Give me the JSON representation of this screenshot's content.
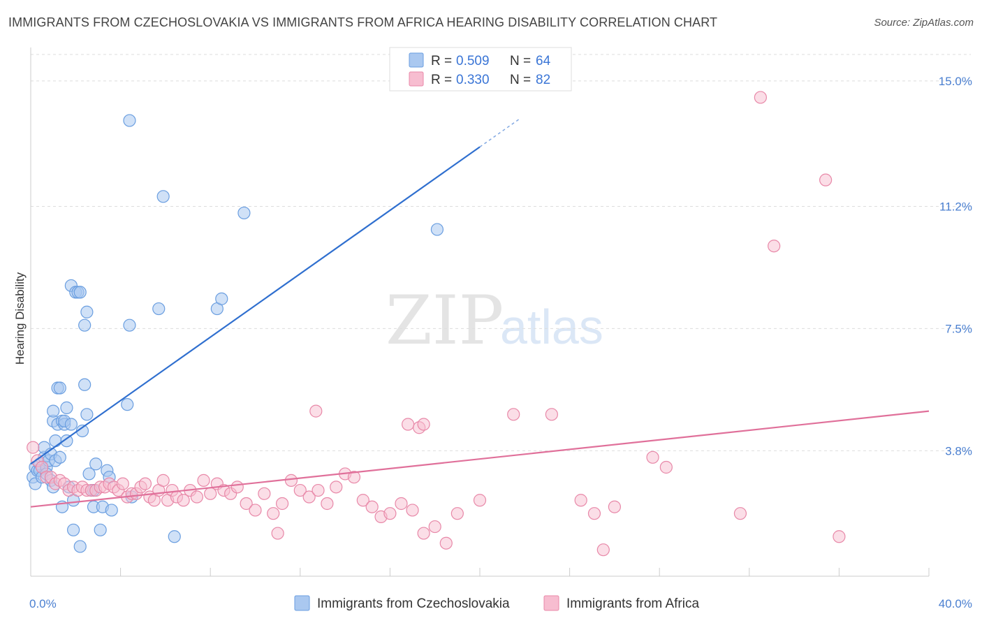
{
  "title": "IMMIGRANTS FROM CZECHOSLOVAKIA VS IMMIGRANTS FROM AFRICA HEARING DISABILITY CORRELATION CHART",
  "source": "Source: ZipAtlas.com",
  "watermark": {
    "zip": "ZIP",
    "atlas": "atlas"
  },
  "legend_top": [
    {
      "r_label": "R = ",
      "r_value": "0.509",
      "n_label": "N = ",
      "n_value": "64"
    },
    {
      "r_label": "R = ",
      "r_value": "0.330",
      "n_label": "N = ",
      "n_value": "82"
    }
  ],
  "colors": {
    "blue_fill": "#aac8f0",
    "blue_stroke": "#6a9ee0",
    "blue_line": "#2f6fcf",
    "pink_fill": "#f7bdd0",
    "pink_stroke": "#e888a8",
    "pink_line": "#e0709a",
    "tick_text": "#4a7fd0",
    "grid": "#dddddd"
  },
  "chart_data": {
    "type": "scatter",
    "title": "IMMIGRANTS FROM CZECHOSLOVAKIA VS IMMIGRANTS FROM AFRICA HEARING DISABILITY CORRELATION CHART",
    "xlabel": "",
    "ylabel": "Hearing Disability",
    "xlim": [
      0,
      40
    ],
    "ylim": [
      0,
      15.8
    ],
    "x_tick_labels": [
      "0.0%",
      "40.0%"
    ],
    "y_ticks": [
      3.8,
      7.5,
      11.2,
      15.0
    ],
    "y_tick_labels": [
      "3.8%",
      "7.5%",
      "11.2%",
      "15.0%"
    ],
    "grid": true,
    "legend_position": "top-center",
    "series": [
      {
        "name": "Immigrants from Czechoslovakia",
        "color": "#6a9ee0",
        "R": 0.509,
        "N": 64,
        "trend": {
          "x": [
            0,
            20
          ],
          "y": [
            3.4,
            13.0
          ]
        },
        "points": [
          [
            0.1,
            3.0
          ],
          [
            0.2,
            2.8
          ],
          [
            0.2,
            3.3
          ],
          [
            0.3,
            3.2
          ],
          [
            0.4,
            3.4
          ],
          [
            0.4,
            3.2
          ],
          [
            0.5,
            3.0
          ],
          [
            0.6,
            3.6
          ],
          [
            0.6,
            3.9
          ],
          [
            0.7,
            3.3
          ],
          [
            0.7,
            3.1
          ],
          [
            0.8,
            3.5
          ],
          [
            0.9,
            2.9
          ],
          [
            0.9,
            3.7
          ],
          [
            1.0,
            4.7
          ],
          [
            1.0,
            5.0
          ],
          [
            1.0,
            2.7
          ],
          [
            1.1,
            3.5
          ],
          [
            1.1,
            4.1
          ],
          [
            1.2,
            4.6
          ],
          [
            1.2,
            5.7
          ],
          [
            1.3,
            3.6
          ],
          [
            1.3,
            5.7
          ],
          [
            1.4,
            2.1
          ],
          [
            1.4,
            4.7
          ],
          [
            1.5,
            4.6
          ],
          [
            1.5,
            4.7
          ],
          [
            1.6,
            4.1
          ],
          [
            1.6,
            5.1
          ],
          [
            1.7,
            2.7
          ],
          [
            1.8,
            4.6
          ],
          [
            1.8,
            8.8
          ],
          [
            1.9,
            2.3
          ],
          [
            1.9,
            1.4
          ],
          [
            2.0,
            8.6
          ],
          [
            2.1,
            8.6
          ],
          [
            2.2,
            8.6
          ],
          [
            2.2,
            0.9
          ],
          [
            2.3,
            4.4
          ],
          [
            2.4,
            5.8
          ],
          [
            2.4,
            7.6
          ],
          [
            2.5,
            4.9
          ],
          [
            2.5,
            8.0
          ],
          [
            2.6,
            3.1
          ],
          [
            2.7,
            2.6
          ],
          [
            2.8,
            2.1
          ],
          [
            2.8,
            2.6
          ],
          [
            2.9,
            3.4
          ],
          [
            3.1,
            1.4
          ],
          [
            3.2,
            2.1
          ],
          [
            3.4,
            3.2
          ],
          [
            3.5,
            3.0
          ],
          [
            3.6,
            2.0
          ],
          [
            4.3,
            5.2
          ],
          [
            4.4,
            7.6
          ],
          [
            4.5,
            2.4
          ],
          [
            4.4,
            13.8
          ],
          [
            5.7,
            8.1
          ],
          [
            5.9,
            11.5
          ],
          [
            6.4,
            1.2
          ],
          [
            8.3,
            8.1
          ],
          [
            8.5,
            8.4
          ],
          [
            9.5,
            11.0
          ],
          [
            18.1,
            10.5
          ]
        ]
      },
      {
        "name": "Immigrants from Africa",
        "color": "#e888a8",
        "R": 0.33,
        "N": 82,
        "trend": {
          "x": [
            0,
            40
          ],
          "y": [
            2.1,
            5.0
          ]
        },
        "points": [
          [
            0.1,
            3.9
          ],
          [
            0.3,
            3.5
          ],
          [
            0.5,
            3.3
          ],
          [
            0.7,
            3.0
          ],
          [
            0.9,
            3.0
          ],
          [
            1.1,
            2.8
          ],
          [
            1.3,
            2.9
          ],
          [
            1.5,
            2.8
          ],
          [
            1.7,
            2.6
          ],
          [
            1.9,
            2.7
          ],
          [
            2.1,
            2.6
          ],
          [
            2.3,
            2.7
          ],
          [
            2.5,
            2.6
          ],
          [
            2.7,
            2.6
          ],
          [
            2.9,
            2.6
          ],
          [
            3.1,
            2.7
          ],
          [
            3.3,
            2.7
          ],
          [
            3.5,
            2.8
          ],
          [
            3.7,
            2.7
          ],
          [
            3.9,
            2.6
          ],
          [
            4.1,
            2.8
          ],
          [
            4.3,
            2.4
          ],
          [
            4.5,
            2.5
          ],
          [
            4.7,
            2.5
          ],
          [
            4.9,
            2.7
          ],
          [
            5.1,
            2.8
          ],
          [
            5.3,
            2.4
          ],
          [
            5.5,
            2.3
          ],
          [
            5.7,
            2.6
          ],
          [
            5.9,
            2.9
          ],
          [
            6.1,
            2.3
          ],
          [
            6.3,
            2.6
          ],
          [
            6.5,
            2.4
          ],
          [
            6.8,
            2.3
          ],
          [
            7.1,
            2.6
          ],
          [
            7.4,
            2.4
          ],
          [
            7.7,
            2.9
          ],
          [
            8.0,
            2.5
          ],
          [
            8.3,
            2.8
          ],
          [
            8.6,
            2.6
          ],
          [
            8.9,
            2.5
          ],
          [
            9.2,
            2.7
          ],
          [
            9.6,
            2.2
          ],
          [
            10.0,
            2.0
          ],
          [
            10.4,
            2.5
          ],
          [
            10.8,
            1.9
          ],
          [
            11.2,
            2.2
          ],
          [
            11.6,
            2.9
          ],
          [
            12.0,
            2.6
          ],
          [
            12.4,
            2.4
          ],
          [
            12.8,
            2.6
          ],
          [
            13.2,
            2.2
          ],
          [
            13.6,
            2.7
          ],
          [
            14.0,
            3.1
          ],
          [
            14.4,
            3.0
          ],
          [
            14.8,
            2.3
          ],
          [
            15.2,
            2.1
          ],
          [
            15.6,
            1.8
          ],
          [
            16.0,
            1.9
          ],
          [
            16.5,
            2.2
          ],
          [
            17.0,
            2.0
          ],
          [
            17.5,
            1.3
          ],
          [
            18.0,
            1.5
          ],
          [
            18.5,
            1.0
          ],
          [
            19.0,
            1.9
          ],
          [
            20.0,
            2.3
          ],
          [
            11.0,
            1.3
          ],
          [
            12.7,
            5.0
          ],
          [
            16.8,
            4.6
          ],
          [
            17.3,
            4.5
          ],
          [
            17.5,
            4.6
          ],
          [
            21.5,
            4.9
          ],
          [
            23.2,
            4.9
          ],
          [
            24.5,
            2.3
          ],
          [
            25.1,
            1.9
          ],
          [
            25.5,
            0.8
          ],
          [
            26.0,
            2.1
          ],
          [
            27.7,
            3.6
          ],
          [
            28.3,
            3.3
          ],
          [
            31.6,
            1.9
          ],
          [
            35.4,
            12.0
          ],
          [
            32.5,
            14.5
          ],
          [
            33.1,
            10.0
          ],
          [
            36.0,
            1.2
          ]
        ]
      }
    ]
  },
  "legend_bottom": [
    "Immigrants from Czechoslovakia",
    "Immigrants from Africa"
  ]
}
